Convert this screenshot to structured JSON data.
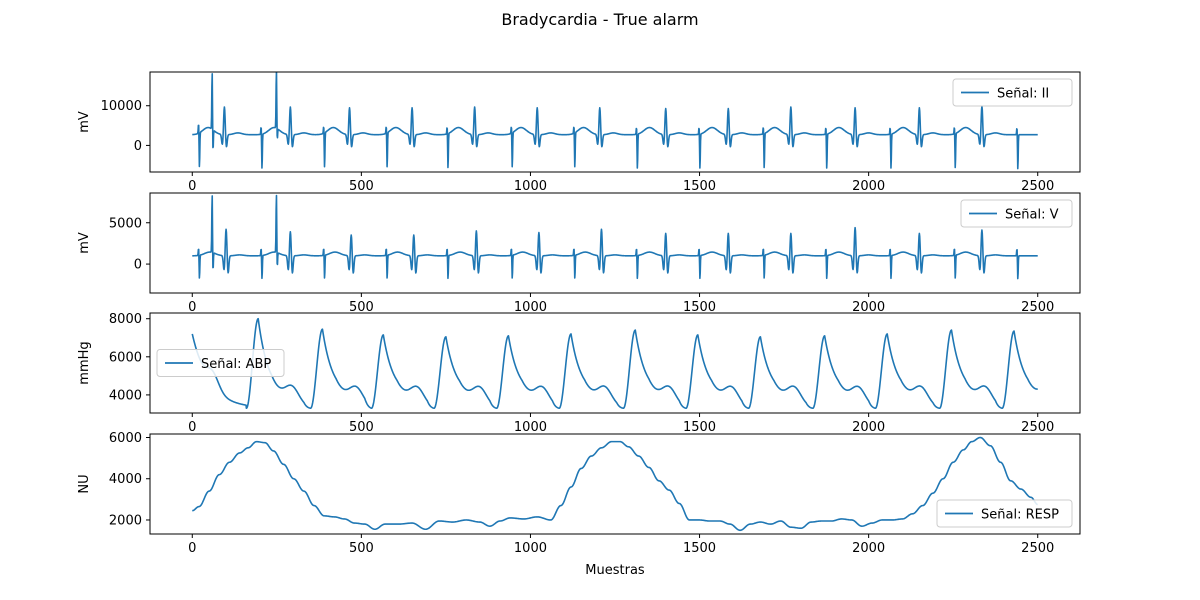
{
  "figure": {
    "title": "Bradycardia - True alarm"
  },
  "colors": {
    "line": "#1f77b4",
    "axes": "#000000",
    "legend_border": "#cccccc",
    "background": "#ffffff"
  },
  "chart_data": [
    {
      "type": "line",
      "title": "",
      "xlabel": "",
      "ylabel": "mV",
      "xlim": [
        -125,
        2625
      ],
      "ylim": [
        -6700,
        18500
      ],
      "xticks": [
        0,
        500,
        1000,
        1500,
        2000,
        2500
      ],
      "yticks": [
        0,
        10000
      ],
      "grid": false,
      "legend": {
        "placement": "upper right",
        "label": "Señal: II"
      },
      "waveform": "ecg",
      "series": [
        {
          "name": "Señal: II",
          "baseline": 2700,
          "beats": [
            {
              "r": 95,
              "peak": 9800,
              "trough": -3100,
              "t_amp": 1800
            },
            {
              "r": 290,
              "peak": 9800,
              "trough": -3100,
              "t_amp": 1800
            },
            {
              "r": 465,
              "peak": 9600,
              "trough": -3100,
              "t_amp": 1800
            },
            {
              "r": 650,
              "peak": 9600,
              "trough": -3100,
              "t_amp": 1800
            },
            {
              "r": 835,
              "peak": 9800,
              "trough": -3100,
              "t_amp": 1800
            },
            {
              "r": 1020,
              "peak": 9600,
              "trough": -3100,
              "t_amp": 1800
            },
            {
              "r": 1205,
              "peak": 9600,
              "trough": -3100,
              "t_amp": 1800
            },
            {
              "r": 1400,
              "peak": 9400,
              "trough": -3100,
              "t_amp": 1800
            },
            {
              "r": 1585,
              "peak": 9400,
              "trough": -3100,
              "t_amp": 1800
            },
            {
              "r": 1770,
              "peak": 9800,
              "trough": -3100,
              "t_amp": 1800
            },
            {
              "r": 1960,
              "peak": 9600,
              "trough": -3100,
              "t_amp": 1800
            },
            {
              "r": 2150,
              "peak": 9600,
              "trough": -3100,
              "t_amp": 1800
            },
            {
              "r": 2335,
              "peak": 10000,
              "trough": -3100,
              "t_amp": 1800
            }
          ],
          "spikes": [
            {
              "x": 20,
              "peak": 5500,
              "trough": -6200
            },
            {
              "x": 60,
              "peak": 17500,
              "trough": -3200
            },
            {
              "x": 205,
              "peak": 5000,
              "trough": -6200
            },
            {
              "x": 250,
              "peak": 17800,
              "trough": -500
            },
            {
              "x": 390,
              "peak": 4800,
              "trough": -6200
            },
            {
              "x": 575,
              "peak": 4800,
              "trough": -6200
            },
            {
              "x": 755,
              "peak": 4800,
              "trough": -6200
            },
            {
              "x": 945,
              "peak": 4800,
              "trough": -6200
            },
            {
              "x": 1130,
              "peak": 4800,
              "trough": -6200
            },
            {
              "x": 1315,
              "peak": 4800,
              "trough": -6200
            },
            {
              "x": 1500,
              "peak": 4800,
              "trough": -6200
            },
            {
              "x": 1690,
              "peak": 4800,
              "trough": -6200
            },
            {
              "x": 1875,
              "peak": 4800,
              "trough": -6200
            },
            {
              "x": 2065,
              "peak": 4800,
              "trough": -6200
            },
            {
              "x": 2255,
              "peak": 4800,
              "trough": -6200
            },
            {
              "x": 2440,
              "peak": 4800,
              "trough": -6200
            }
          ]
        }
      ]
    },
    {
      "type": "line",
      "title": "",
      "xlabel": "",
      "ylabel": "mV",
      "xlim": [
        -125,
        2625
      ],
      "ylim": [
        -3500,
        8600
      ],
      "xticks": [
        0,
        500,
        1000,
        1500,
        2000,
        2500
      ],
      "yticks": [
        0,
        5000
      ],
      "grid": false,
      "legend": {
        "placement": "upper right",
        "label": "Señal: V"
      },
      "waveform": "ecg",
      "series": [
        {
          "name": "Señal: V",
          "baseline": 1000,
          "beats": [
            {
              "r": 100,
              "peak": 4300,
              "trough": -2900,
              "t_amp": 450
            },
            {
              "r": 290,
              "peak": 4000,
              "trough": -2900,
              "t_amp": 450
            },
            {
              "r": 470,
              "peak": 3600,
              "trough": -2900,
              "t_amp": 450
            },
            {
              "r": 655,
              "peak": 3600,
              "trough": -2900,
              "t_amp": 450
            },
            {
              "r": 840,
              "peak": 4100,
              "trough": -2900,
              "t_amp": 450
            },
            {
              "r": 1025,
              "peak": 3900,
              "trough": -2900,
              "t_amp": 450
            },
            {
              "r": 1210,
              "peak": 4300,
              "trough": -2900,
              "t_amp": 450
            },
            {
              "r": 1400,
              "peak": 3800,
              "trough": -2900,
              "t_amp": 450
            },
            {
              "r": 1585,
              "peak": 3800,
              "trough": -2900,
              "t_amp": 450
            },
            {
              "r": 1770,
              "peak": 3800,
              "trough": -2900,
              "t_amp": 450
            },
            {
              "r": 1960,
              "peak": 4500,
              "trough": -2900,
              "t_amp": 450
            },
            {
              "r": 2150,
              "peak": 3800,
              "trough": -2900,
              "t_amp": 450
            },
            {
              "r": 2335,
              "peak": 4200,
              "trough": -2900,
              "t_amp": 450
            }
          ],
          "spikes": [
            {
              "x": 20,
              "peak": 2000,
              "trough": -1900
            },
            {
              "x": 60,
              "peak": 8200,
              "trough": -1500
            },
            {
              "x": 205,
              "peak": 2000,
              "trough": -1900
            },
            {
              "x": 250,
              "peak": 8200,
              "trough": -1000
            },
            {
              "x": 390,
              "peak": 2000,
              "trough": -1900
            },
            {
              "x": 575,
              "peak": 2000,
              "trough": -1900
            },
            {
              "x": 755,
              "peak": 2000,
              "trough": -1900
            },
            {
              "x": 945,
              "peak": 2000,
              "trough": -1900
            },
            {
              "x": 1130,
              "peak": 2000,
              "trough": -1900
            },
            {
              "x": 1315,
              "peak": 2000,
              "trough": -1900
            },
            {
              "x": 1500,
              "peak": 2000,
              "trough": -1900
            },
            {
              "x": 1690,
              "peak": 2000,
              "trough": -1900
            },
            {
              "x": 1875,
              "peak": 2000,
              "trough": -1900
            },
            {
              "x": 2065,
              "peak": 2000,
              "trough": -1900
            },
            {
              "x": 2255,
              "peak": 2000,
              "trough": -1900
            },
            {
              "x": 2440,
              "peak": 2000,
              "trough": -1900
            }
          ]
        }
      ]
    },
    {
      "type": "line",
      "title": "",
      "xlabel": "",
      "ylabel": "mmHg",
      "xlim": [
        -125,
        2625
      ],
      "ylim": [
        3050,
        8300
      ],
      "xticks": [
        0,
        500,
        1000,
        1500,
        2000,
        2500
      ],
      "yticks": [
        4000,
        6000,
        8000
      ],
      "grid": false,
      "legend": {
        "placement": "center left",
        "label": "Señal: ABP"
      },
      "waveform": "abp",
      "series": [
        {
          "name": "Señal: ABP",
          "start_value": 7200,
          "floor": 3300,
          "dicrotic_amp": 800,
          "beats": [
            {
              "x": 195,
              "peak": 8000
            },
            {
              "x": 385,
              "peak": 7450
            },
            {
              "x": 565,
              "peak": 7150
            },
            {
              "x": 750,
              "peak": 7050
            },
            {
              "x": 935,
              "peak": 7100
            },
            {
              "x": 1120,
              "peak": 7200
            },
            {
              "x": 1310,
              "peak": 7400
            },
            {
              "x": 1495,
              "peak": 7150
            },
            {
              "x": 1680,
              "peak": 7050
            },
            {
              "x": 1870,
              "peak": 7100
            },
            {
              "x": 2055,
              "peak": 7200
            },
            {
              "x": 2245,
              "peak": 7400
            },
            {
              "x": 2430,
              "peak": 7350
            }
          ]
        }
      ]
    },
    {
      "type": "line",
      "title": "",
      "xlabel": "Muestras",
      "ylabel": "NU",
      "xlim": [
        -125,
        2625
      ],
      "ylim": [
        1320,
        6170
      ],
      "xticks": [
        0,
        500,
        1000,
        1500,
        2000,
        2500
      ],
      "yticks": [
        2000,
        4000,
        6000
      ],
      "grid": false,
      "legend": {
        "placement": "lower right",
        "label": "Señal: RESP"
      },
      "waveform": "resp",
      "series": [
        {
          "name": "Señal: RESP",
          "x": [
            0,
            20,
            50,
            80,
            110,
            140,
            165,
            190,
            215,
            240,
            270,
            300,
            330,
            360,
            390,
            420,
            450,
            480,
            510,
            540,
            570,
            610,
            650,
            690,
            730,
            770,
            810,
            850,
            880,
            910,
            940,
            980,
            1020,
            1060,
            1090,
            1120,
            1150,
            1180,
            1210,
            1240,
            1265,
            1290,
            1320,
            1350,
            1380,
            1410,
            1440,
            1470,
            1500,
            1530,
            1560,
            1590,
            1620,
            1650,
            1680,
            1710,
            1740,
            1770,
            1800,
            1830,
            1860,
            1890,
            1920,
            1950,
            1980,
            2010,
            2040,
            2070,
            2100,
            2130,
            2160,
            2190,
            2220,
            2250,
            2280,
            2305,
            2330,
            2360,
            2390,
            2420,
            2450,
            2480,
            2500
          ],
          "values": [
            2450,
            2650,
            3400,
            4200,
            4800,
            5250,
            5500,
            5800,
            5750,
            5350,
            4700,
            4000,
            3400,
            2700,
            2200,
            2150,
            2050,
            1850,
            1800,
            1550,
            1800,
            1800,
            1850,
            1550,
            1950,
            1900,
            2000,
            1900,
            1700,
            1950,
            2100,
            2050,
            2150,
            2000,
            2700,
            3600,
            4500,
            5100,
            5500,
            5800,
            5800,
            5550,
            5100,
            4550,
            3900,
            3450,
            2800,
            2000,
            2000,
            1950,
            1950,
            1800,
            1500,
            1800,
            1900,
            1800,
            1950,
            1650,
            1600,
            1900,
            1950,
            1950,
            2050,
            2000,
            1700,
            1850,
            2000,
            2000,
            2050,
            2300,
            2700,
            3300,
            4000,
            4800,
            5400,
            5800,
            6000,
            5600,
            4800,
            3900,
            3500,
            3100,
            2750
          ]
        }
      ]
    }
  ]
}
